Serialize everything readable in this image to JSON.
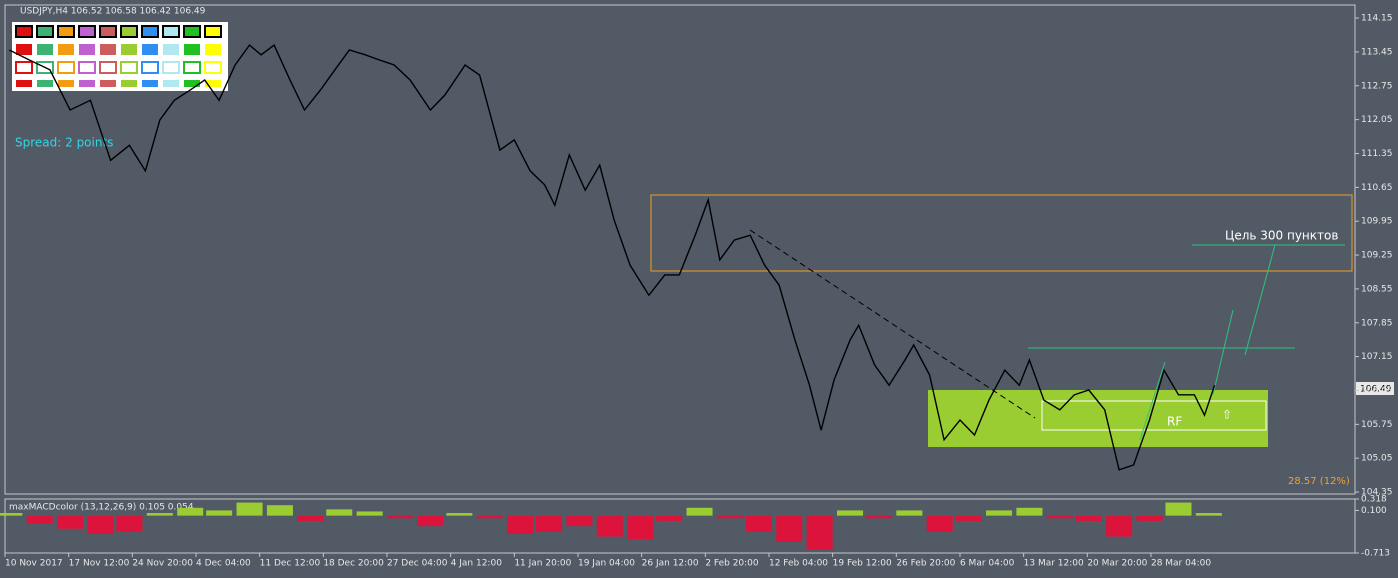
{
  "header": "USDJPY,H4  106.52 106.58 106.42 106.49",
  "spread": "Spread: 2 points",
  "target": "Цель 300 пунктов",
  "zone_label": "RF",
  "stat": "28.57 (12%)",
  "price_tag": "106.49",
  "chart_data": [
    {
      "type": "line",
      "name": "USDJPY,H4",
      "color": "#000000",
      "xlim": [
        0,
        933
      ],
      "ylim": [
        104.31,
        114.42
      ],
      "yticks": [
        114.15,
        113.45,
        112.75,
        112.05,
        111.35,
        110.65,
        109.95,
        109.25,
        108.55,
        107.85,
        107.15,
        106.45,
        105.75,
        105.05,
        104.35
      ],
      "x": [
        3,
        17,
        31,
        45,
        59,
        73,
        86,
        97,
        107,
        117,
        128,
        138,
        148,
        159,
        169,
        177,
        186,
        197,
        207,
        218,
        228,
        238,
        249,
        259,
        269,
        280,
        294,
        304,
        318,
        328,
        342,
        352,
        363,
        373,
        380,
        390,
        401,
        411,
        421,
        432,
        445,
        456,
        466,
        477,
        486,
        494,
        504,
        515,
        525,
        535,
        546,
        556,
        564,
        573,
        584,
        590,
        601,
        611,
        622,
        628,
        639,
        649,
        660,
        670,
        680,
        691,
        701,
        708,
        718,
        729,
        739,
        749,
        760,
        770,
        780,
        791,
        801,
        811,
        822,
        829,
        836
      ],
      "values": [
        113.49,
        113.28,
        113.08,
        112.25,
        112.45,
        111.21,
        111.52,
        110.99,
        112.04,
        112.45,
        112.66,
        112.87,
        112.45,
        113.18,
        113.59,
        113.39,
        113.59,
        112.87,
        112.25,
        112.66,
        113.08,
        113.49,
        113.39,
        113.28,
        113.18,
        112.87,
        112.25,
        112.56,
        113.18,
        112.97,
        111.42,
        111.63,
        110.99,
        110.7,
        110.28,
        111.32,
        110.59,
        111.11,
        109.97,
        109.04,
        108.42,
        108.84,
        108.84,
        109.66,
        110.39,
        109.15,
        109.56,
        109.66,
        109.04,
        108.63,
        107.49,
        106.56,
        105.63,
        106.67,
        107.49,
        107.8,
        106.98,
        106.56,
        107.08,
        107.39,
        106.77,
        105.43,
        105.84,
        105.53,
        106.25,
        106.87,
        106.56,
        107.08,
        106.25,
        106.05,
        106.36,
        106.46,
        106.05,
        104.81,
        104.91,
        105.84,
        106.87,
        106.36,
        106.36,
        105.94,
        106.56
      ]
    },
    {
      "type": "bar",
      "name": "maxMACDcolor (13,12,26,9) 0.105 0.054",
      "pos_color": "#9acd32",
      "neg_color": "#dc143c",
      "xlim": [
        0,
        933
      ],
      "ylim": [
        -0.713,
        0.318
      ],
      "yticks": [
        0.318,
        {
          "value": 0.1,
          "label": "0.100"
        },
        -0.713
      ],
      "xticks": [
        {
          "value": 0,
          "label": "10 Nov 2017"
        },
        {
          "value": 44,
          "label": "17 Nov 12:00"
        },
        {
          "value": 88,
          "label": "24 Nov 20:00"
        },
        {
          "value": 132,
          "label": "4 Dec 04:00"
        },
        {
          "value": 176,
          "label": "11 Dec 12:00"
        },
        {
          "value": 220,
          "label": "18 Dec 20:00"
        },
        {
          "value": 264,
          "label": "27 Dec 04:00"
        },
        {
          "value": 308,
          "label": "4 Jan 12:00"
        },
        {
          "value": 352,
          "label": "11 Jan 20:00"
        },
        {
          "value": 396,
          "label": "19 Jan 04:00"
        },
        {
          "value": 440,
          "label": "26 Jan 12:00"
        },
        {
          "value": 484,
          "label": "2 Feb 20:00"
        },
        {
          "value": 528,
          "label": "12 Feb 04:00"
        },
        {
          "value": 572,
          "label": "19 Feb 12:00"
        },
        {
          "value": 616,
          "label": "26 Feb 20:00"
        },
        {
          "value": 660,
          "label": "6 Mar 04:00"
        },
        {
          "value": 704,
          "label": "13 Mar 12:00"
        },
        {
          "value": 748,
          "label": "20 Mar 20:00"
        },
        {
          "value": 792,
          "label": "28 Mar 04:00"
        }
      ],
      "x": [
        3,
        24,
        45,
        66,
        86,
        107,
        128,
        148,
        169,
        190,
        211,
        231,
        252,
        273,
        294,
        314,
        335,
        356,
        376,
        397,
        418,
        439,
        459,
        480,
        501,
        521,
        542,
        563,
        584,
        604,
        625,
        646,
        666,
        687,
        708,
        729,
        749,
        770,
        791,
        811,
        832
      ],
      "values": [
        0.05,
        -0.15,
        -0.25,
        -0.35,
        -0.3,
        0.05,
        0.15,
        0.1,
        0.25,
        0.2,
        -0.1,
        0.12,
        0.08,
        -0.05,
        -0.2,
        0.05,
        -0.05,
        -0.35,
        -0.3,
        -0.2,
        -0.4,
        -0.45,
        -0.1,
        0.15,
        -0.05,
        -0.3,
        -0.5,
        -0.65,
        0.1,
        -0.05,
        0.1,
        -0.3,
        -0.1,
        0.1,
        0.15,
        -0.05,
        -0.1,
        -0.4,
        -0.1,
        0.25,
        0.05
      ]
    }
  ]
}
